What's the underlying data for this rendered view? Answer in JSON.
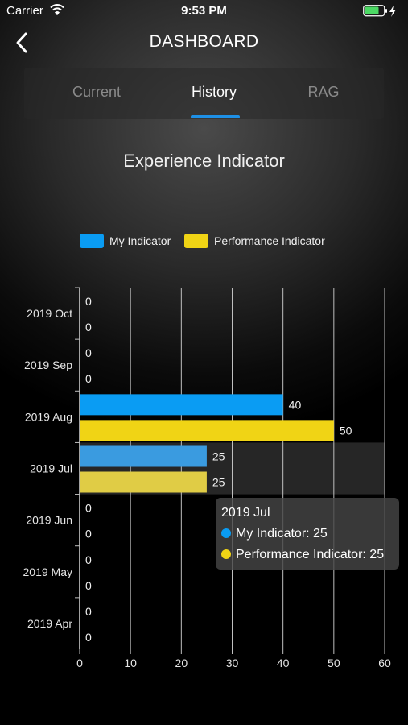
{
  "status_bar": {
    "carrier": "Carrier",
    "time": "9:53 PM"
  },
  "nav": {
    "title": "DASHBOARD",
    "back_icon": "chevron-left-icon"
  },
  "tabs": [
    {
      "label": "Current",
      "selected": false
    },
    {
      "label": "History",
      "selected": true
    },
    {
      "label": "RAG",
      "selected": false
    }
  ],
  "colors": {
    "accent": "#1e90e6",
    "my_indicator": "#0a9cf3",
    "performance_indicator": "#f0d415"
  },
  "tooltip": {
    "title": "2019 Jul",
    "rows": [
      "My Indicator: 25",
      "Performance Indicator: 25"
    ]
  },
  "chart_data": {
    "type": "bar",
    "orientation": "horizontal",
    "title": "Experience Indicator",
    "categories": [
      "2019 Oct",
      "2019 Sep",
      "2019 Aug",
      "2019 Jul",
      "2019 Jun",
      "2019 May",
      "2019 Apr"
    ],
    "series": [
      {
        "name": "My Indicator",
        "values": [
          0,
          0,
          40,
          25,
          0,
          0,
          0
        ],
        "color": "#0a9cf3"
      },
      {
        "name": "Performance Indicator",
        "values": [
          0,
          0,
          50,
          25,
          0,
          0,
          0
        ],
        "color": "#f0d415"
      }
    ],
    "xlim": [
      0,
      60
    ],
    "xticks": [
      0,
      10,
      20,
      30,
      40,
      50,
      60
    ],
    "grid": true,
    "legend_position": "top",
    "highlighted_category": "2019 Jul"
  }
}
